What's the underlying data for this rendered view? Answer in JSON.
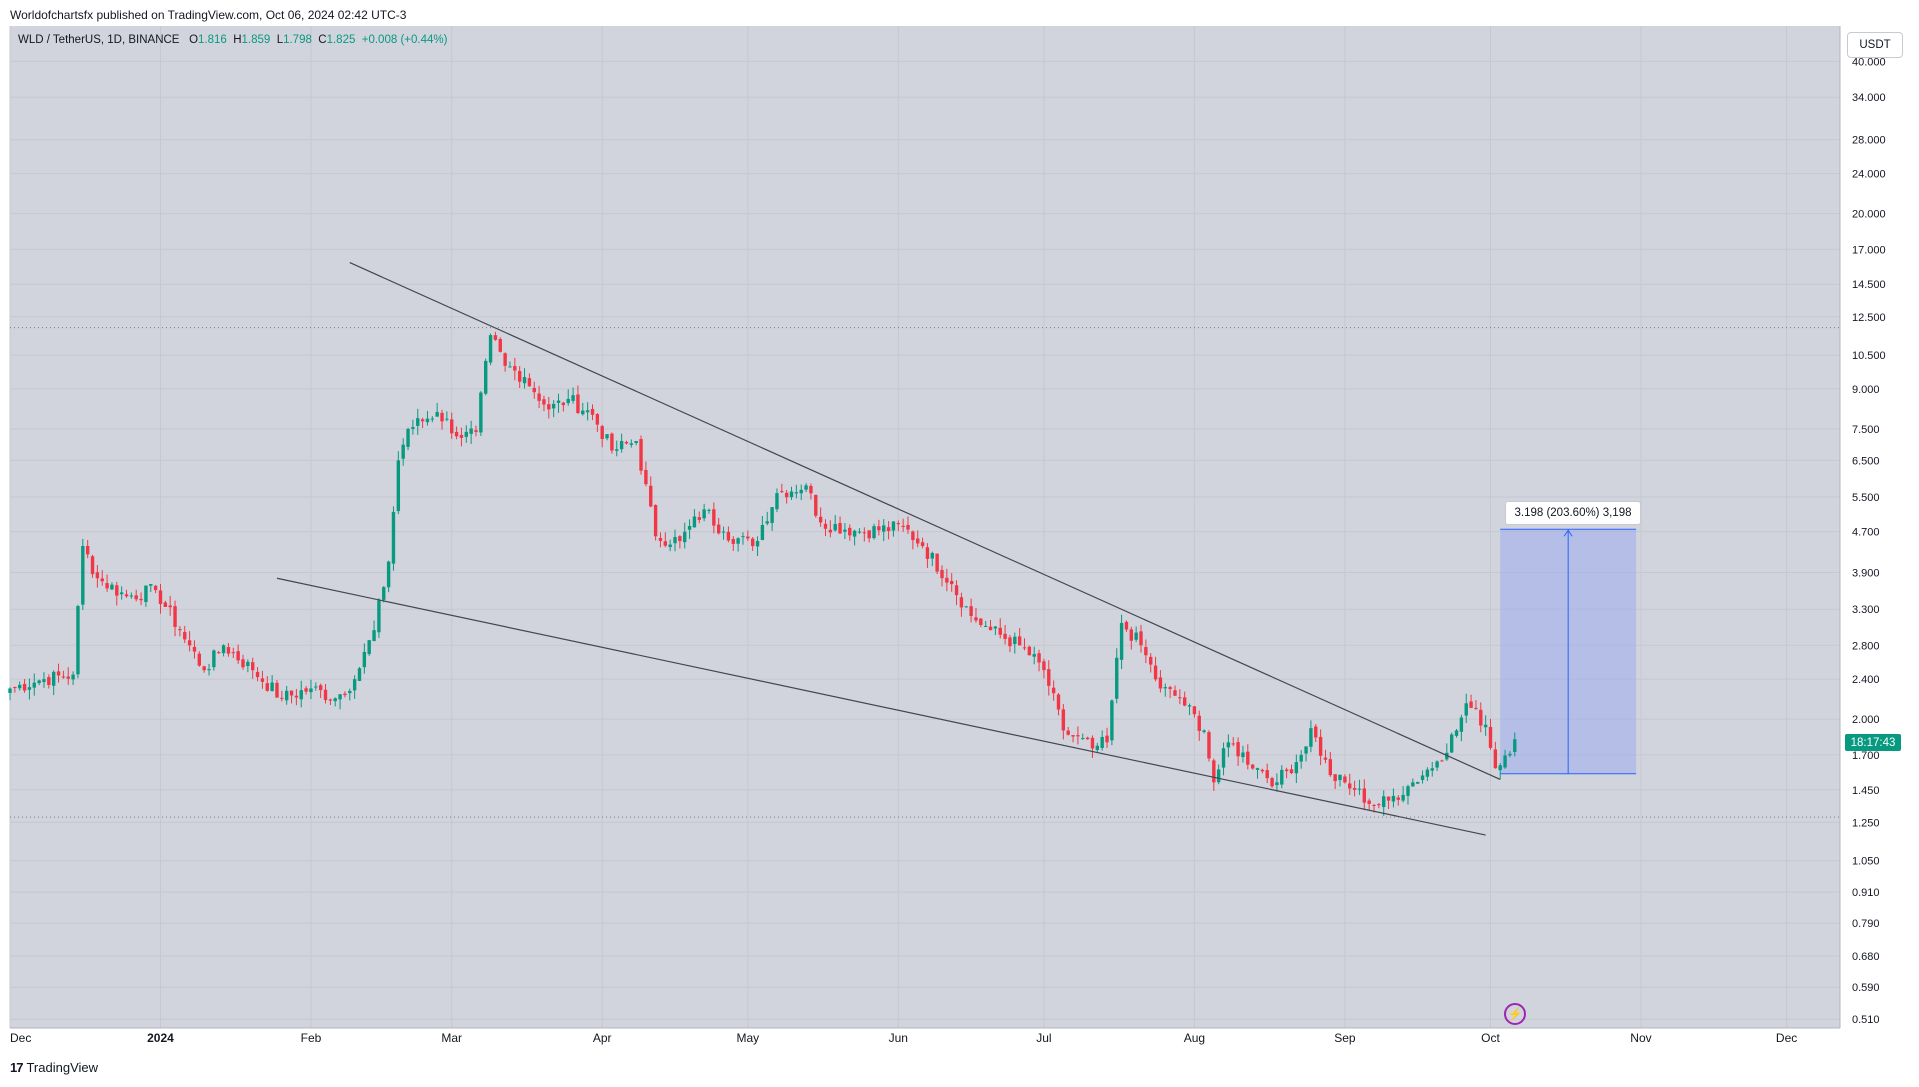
{
  "header": {
    "published": "Worldofchartsfx published on TradingView.com, Oct 06, 2024 02:42 UTC-3"
  },
  "legend": {
    "symbol": "WLD / TetherUS, 1D, BINANCE",
    "o_label": "O",
    "o_value": "1.816",
    "h_label": "H",
    "h_value": "1.859",
    "l_label": "L",
    "l_value": "1.798",
    "c_label": "C",
    "c_value": "1.825",
    "change": "+0.008 (+0.44%)"
  },
  "price_axis": {
    "currency": "USDT",
    "countdown": "18:17:43"
  },
  "measure": {
    "label": "3.198 (203.60%) 3,198"
  },
  "footer": {
    "brand": "TradingView",
    "logo": "17"
  },
  "colors": {
    "up": "#089981",
    "down": "#f23645",
    "plot_bg": "#d1d4dc",
    "trendline": "#434651",
    "measure_fill": "#9cacf0",
    "measure_line": "#2962ff"
  },
  "chart_data": {
    "type": "candlestick",
    "symbol": "WLD / TetherUS",
    "interval": "1D",
    "exchange": "BINANCE",
    "scale": "log",
    "ylim": [
      0.49,
      47.0
    ],
    "y_ticks": [
      "40.000",
      "34.000",
      "28.000",
      "24.000",
      "20.000",
      "17.000",
      "14.500",
      "12.500",
      "10.500",
      "9.000",
      "7.500",
      "6.500",
      "5.500",
      "4.700",
      "3.900",
      "3.300",
      "2.800",
      "2.400",
      "2.000",
      "1.700",
      "1.450",
      "1.250",
      "1.050",
      "0.910",
      "0.790",
      "0.680",
      "0.590",
      "0.510"
    ],
    "x_ticks": [
      {
        "label": "Dec",
        "date": "2023-12-01"
      },
      {
        "label": "2024",
        "date": "2024-01-01"
      },
      {
        "label": "Feb",
        "date": "2024-02-01"
      },
      {
        "label": "Mar",
        "date": "2024-03-01"
      },
      {
        "label": "Apr",
        "date": "2024-04-01"
      },
      {
        "label": "May",
        "date": "2024-05-01"
      },
      {
        "label": "Jun",
        "date": "2024-06-01"
      },
      {
        "label": "Jul",
        "date": "2024-07-01"
      },
      {
        "label": "Aug",
        "date": "2024-08-01"
      },
      {
        "label": "Sep",
        "date": "2024-09-01"
      },
      {
        "label": "Oct",
        "date": "2024-10-01"
      },
      {
        "label": "Nov",
        "date": "2024-11-01"
      },
      {
        "label": "Dec",
        "date": "2024-12-01"
      }
    ],
    "xlim": [
      "2023-12-01",
      "2024-12-12"
    ],
    "anchors": [
      [
        "2023-12-01",
        2.3
      ],
      [
        "2023-12-08",
        2.4
      ],
      [
        "2023-12-14",
        2.45
      ],
      [
        "2023-12-16",
        4.4
      ],
      [
        "2023-12-19",
        3.8
      ],
      [
        "2023-12-25",
        3.5
      ],
      [
        "2023-12-31",
        3.6
      ],
      [
        "2024-01-05",
        3.0
      ],
      [
        "2024-01-10",
        2.5
      ],
      [
        "2024-01-14",
        2.8
      ],
      [
        "2024-01-20",
        2.5
      ],
      [
        "2024-01-26",
        2.2
      ],
      [
        "2024-02-01",
        2.3
      ],
      [
        "2024-02-06",
        2.2
      ],
      [
        "2024-02-10",
        2.4
      ],
      [
        "2024-02-14",
        3.0
      ],
      [
        "2024-02-17",
        4.1
      ],
      [
        "2024-02-19",
        6.5
      ],
      [
        "2024-02-21",
        7.5
      ],
      [
        "2024-02-27",
        8.1
      ],
      [
        "2024-03-03",
        7.2
      ],
      [
        "2024-03-06",
        7.4
      ],
      [
        "2024-03-09",
        11.5
      ],
      [
        "2024-03-12",
        10.0
      ],
      [
        "2024-03-16",
        9.5
      ],
      [
        "2024-03-21",
        8.2
      ],
      [
        "2024-03-25",
        8.6
      ],
      [
        "2024-03-30",
        8.0
      ],
      [
        "2024-04-03",
        6.8
      ],
      [
        "2024-04-08",
        7.1
      ],
      [
        "2024-04-12",
        4.6
      ],
      [
        "2024-04-17",
        4.5
      ],
      [
        "2024-04-22",
        5.2
      ],
      [
        "2024-04-26",
        4.7
      ],
      [
        "2024-05-02",
        4.4
      ],
      [
        "2024-05-07",
        5.6
      ],
      [
        "2024-05-13",
        5.8
      ],
      [
        "2024-05-16",
        4.9
      ],
      [
        "2024-05-24",
        4.7
      ],
      [
        "2024-06-02",
        4.8
      ],
      [
        "2024-06-06",
        4.4
      ],
      [
        "2024-06-12",
        3.7
      ],
      [
        "2024-06-16",
        3.2
      ],
      [
        "2024-06-20",
        3.0
      ],
      [
        "2024-06-26",
        2.8
      ],
      [
        "2024-07-01",
        2.5
      ],
      [
        "2024-07-05",
        1.9
      ],
      [
        "2024-07-11",
        1.75
      ],
      [
        "2024-07-14",
        1.8
      ],
      [
        "2024-07-17",
        3.1
      ],
      [
        "2024-07-21",
        2.8
      ],
      [
        "2024-07-25",
        2.3
      ],
      [
        "2024-07-29",
        2.2
      ],
      [
        "2024-08-03",
        1.9
      ],
      [
        "2024-08-05",
        1.5
      ],
      [
        "2024-08-08",
        1.8
      ],
      [
        "2024-08-14",
        1.6
      ],
      [
        "2024-08-18",
        1.5
      ],
      [
        "2024-08-23",
        1.7
      ],
      [
        "2024-08-25",
        1.92
      ],
      [
        "2024-08-29",
        1.55
      ],
      [
        "2024-09-03",
        1.45
      ],
      [
        "2024-09-07",
        1.35
      ],
      [
        "2024-09-10",
        1.38
      ],
      [
        "2024-09-15",
        1.5
      ],
      [
        "2024-09-20",
        1.65
      ],
      [
        "2024-09-24",
        1.9
      ],
      [
        "2024-09-26",
        2.15
      ],
      [
        "2024-09-30",
        1.95
      ],
      [
        "2024-10-02",
        1.6
      ],
      [
        "2024-10-06",
        1.825
      ]
    ],
    "trendlines": [
      {
        "from": [
          "2024-01-25",
          3.8
        ],
        "to": [
          "2024-09-30",
          1.18
        ]
      },
      {
        "from": [
          "2024-02-09",
          16.0
        ],
        "to": [
          "2024-10-03",
          1.52
        ]
      }
    ],
    "h_levels": [
      11.9,
      1.28
    ],
    "measure_box": {
      "x_from": "2024-10-03",
      "x_to": "2024-10-31",
      "y_from": 1.56,
      "y_to": 4.75
    }
  }
}
